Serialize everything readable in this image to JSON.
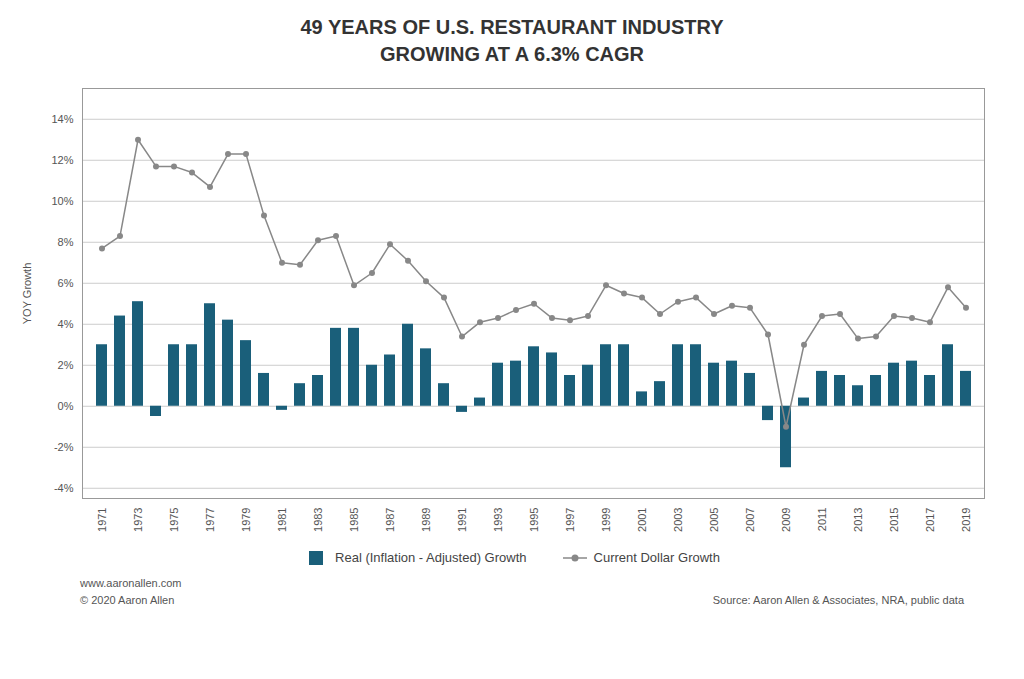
{
  "chart_data": {
    "type": "bar",
    "title": "49 YEARS OF U.S. RESTAURANT INDUSTRY\nGROWING AT A 6.3% CAGR",
    "ylabel": "YOY Growth",
    "categories": [
      "1971",
      null,
      "1973",
      null,
      "1975",
      null,
      "1977",
      null,
      "1979",
      null,
      "1981",
      null,
      "1983",
      null,
      "1985",
      null,
      "1987",
      null,
      "1989",
      null,
      "1991",
      null,
      "1993",
      null,
      "1995",
      null,
      "1997",
      null,
      "1999",
      null,
      "2001",
      null,
      "2003",
      null,
      "2005",
      null,
      "2007",
      null,
      "2009",
      null,
      "2011",
      null,
      "2013",
      null,
      "2015",
      null,
      "2017",
      null,
      "2019"
    ],
    "series": [
      {
        "name": "Real (Inflation - Adjusted) Growth",
        "type": "bar",
        "color": "#1a5f7a",
        "values": [
          3.0,
          4.4,
          5.1,
          -0.5,
          3.0,
          3.0,
          5.0,
          4.2,
          3.2,
          1.6,
          -0.2,
          1.1,
          1.5,
          3.8,
          3.8,
          2.0,
          2.5,
          4.0,
          2.8,
          1.1,
          -0.3,
          0.4,
          2.1,
          2.2,
          2.9,
          2.6,
          1.5,
          2.0,
          3.0,
          3.0,
          0.7,
          1.2,
          3.0,
          3.0,
          2.1,
          2.2,
          1.6,
          -0.7,
          -3.0,
          0.4,
          1.7,
          1.5,
          1.0,
          1.5,
          2.1,
          2.2,
          1.5,
          3.0,
          1.7
        ]
      },
      {
        "name": "Current Dollar Growth",
        "type": "line",
        "color": "#888888",
        "marker": "circle",
        "values": [
          7.7,
          8.3,
          13.0,
          11.7,
          11.7,
          11.4,
          10.7,
          12.3,
          12.3,
          9.3,
          7.0,
          6.9,
          8.1,
          8.3,
          5.9,
          6.5,
          7.9,
          7.1,
          6.1,
          5.3,
          3.4,
          4.1,
          4.3,
          4.7,
          5.0,
          4.3,
          4.2,
          4.4,
          5.9,
          5.5,
          5.3,
          4.5,
          5.1,
          5.3,
          4.5,
          4.9,
          4.8,
          3.5,
          -1.0,
          3.0,
          4.4,
          4.5,
          3.3,
          3.4,
          4.4,
          4.3,
          4.1,
          5.8,
          4.8
        ]
      }
    ],
    "ylim": [
      -4.5,
      15.5
    ],
    "yticks": [
      {
        "value": -4,
        "label": "-4%"
      },
      {
        "value": -2,
        "label": "-2%"
      },
      {
        "value": 0,
        "label": "0%"
      },
      {
        "value": 2,
        "label": "2%"
      },
      {
        "value": 4,
        "label": "4%"
      },
      {
        "value": 6,
        "label": "6%"
      },
      {
        "value": 8,
        "label": "8%"
      },
      {
        "value": 10,
        "label": "10%"
      },
      {
        "value": 12,
        "label": "12%"
      },
      {
        "value": 14,
        "label": "14%"
      }
    ],
    "grid": true,
    "legend": "bottom",
    "annotations": [
      "www.aaronallen.com",
      "© 2020 Aaron Allen",
      "Source: Aaron Allen & Associates, NRA, public data"
    ]
  }
}
